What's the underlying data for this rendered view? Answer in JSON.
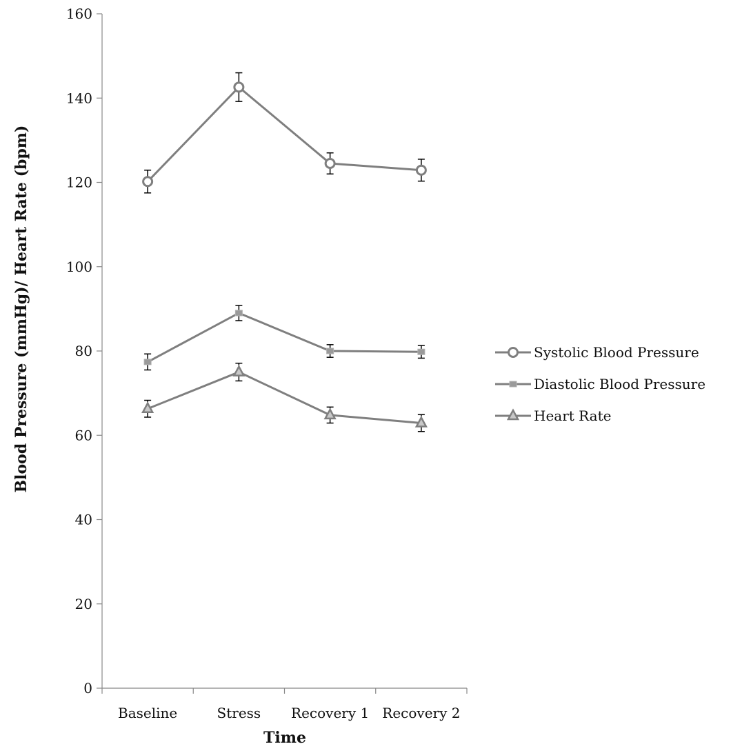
{
  "chart_data": {
    "type": "line",
    "categories": [
      "Baseline",
      "Stress",
      "Recovery 1",
      "Recovery 2"
    ],
    "series": [
      {
        "name": "Systolic Blood Pressure",
        "marker": "circle",
        "values": [
          120.2,
          142.6,
          124.5,
          122.9
        ],
        "errors": [
          2.7,
          3.4,
          2.5,
          2.6
        ]
      },
      {
        "name": "Diastolic Blood Pressure",
        "marker": "square",
        "values": [
          77.4,
          89.0,
          80.0,
          79.8
        ],
        "errors": [
          1.9,
          1.8,
          1.5,
          1.5
        ]
      },
      {
        "name": "Heart Rate",
        "marker": "triangle",
        "values": [
          66.3,
          75.0,
          64.8,
          62.9
        ],
        "errors": [
          2.0,
          2.1,
          1.9,
          2.0
        ]
      }
    ],
    "xlabel": "Time",
    "ylabel": "Blood Pressure (mmHg)/ Heart Rate (bpm)",
    "ylim": [
      0,
      160
    ],
    "yticks": [
      0,
      20,
      40,
      60,
      80,
      100,
      120,
      140,
      160
    ],
    "grid": false,
    "legend_position": "right",
    "line_color": "#7f7f7f",
    "error_bar_color": "#000000"
  }
}
